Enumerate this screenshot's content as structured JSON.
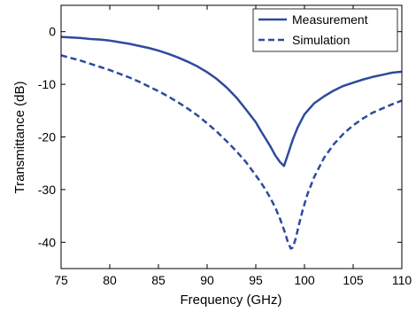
{
  "chart_data": {
    "type": "line",
    "title": "",
    "xlabel": "Frequency (GHz)",
    "ylabel": "Transmittance (dB)",
    "xlim": [
      75,
      110
    ],
    "ylim": [
      -45,
      5
    ],
    "xticks": [
      75,
      80,
      85,
      90,
      95,
      100,
      105,
      110
    ],
    "yticks": [
      0,
      -10,
      -20,
      -30,
      -40
    ],
    "grid": false,
    "legend_position": "top-right",
    "colors": {
      "series": "#2e4a9e",
      "axis": "#000000"
    },
    "series": [
      {
        "name": "Measurement",
        "style": "solid",
        "x": [
          75,
          76,
          77,
          78,
          79,
          80,
          81,
          82,
          83,
          84,
          85,
          86,
          87,
          88,
          89,
          90,
          91,
          92,
          93,
          94,
          95,
          95.5,
          96,
          96.5,
          97,
          97.5,
          97.9,
          98.3,
          98.8,
          99.3,
          100,
          101,
          102,
          103,
          104,
          105,
          106,
          107,
          108,
          109,
          110
        ],
        "y": [
          -1,
          -1.1,
          -1.2,
          -1.4,
          -1.5,
          -1.7,
          -2,
          -2.3,
          -2.7,
          -3.1,
          -3.6,
          -4.2,
          -4.9,
          -5.7,
          -6.6,
          -7.7,
          -9,
          -10.6,
          -12.5,
          -14.8,
          -17.2,
          -18.8,
          -20.3,
          -21.8,
          -23.5,
          -24.8,
          -25.5,
          -23.3,
          -20.5,
          -18.2,
          -15.7,
          -13.6,
          -12.3,
          -11.2,
          -10.3,
          -9.7,
          -9.1,
          -8.6,
          -8.2,
          -7.8,
          -7.6
        ]
      },
      {
        "name": "Simulation",
        "style": "dashed",
        "x": [
          75,
          76,
          77,
          78,
          79,
          80,
          81,
          82,
          83,
          84,
          85,
          86,
          87,
          88,
          89,
          90,
          91,
          92,
          93,
          94,
          95,
          95.5,
          96,
          96.5,
          97,
          97.5,
          98,
          98.3,
          98.6,
          98.8,
          99.1,
          99.4,
          99.8,
          100.3,
          101,
          102,
          103,
          104,
          105,
          106,
          107,
          108,
          109,
          110
        ],
        "y": [
          -4.5,
          -5,
          -5.5,
          -6.1,
          -6.7,
          -7.3,
          -8,
          -8.7,
          -9.5,
          -10.4,
          -11.3,
          -12.3,
          -13.4,
          -14.6,
          -15.9,
          -17.4,
          -19,
          -20.8,
          -22.7,
          -24.8,
          -27.3,
          -28.6,
          -30,
          -31.6,
          -33.4,
          -35.6,
          -38.2,
          -40,
          -41.2,
          -41,
          -39.3,
          -36.9,
          -34,
          -30.9,
          -27.6,
          -24,
          -21.4,
          -19.4,
          -17.8,
          -16.5,
          -15.4,
          -14.6,
          -13.8,
          -13.1
        ]
      }
    ]
  }
}
